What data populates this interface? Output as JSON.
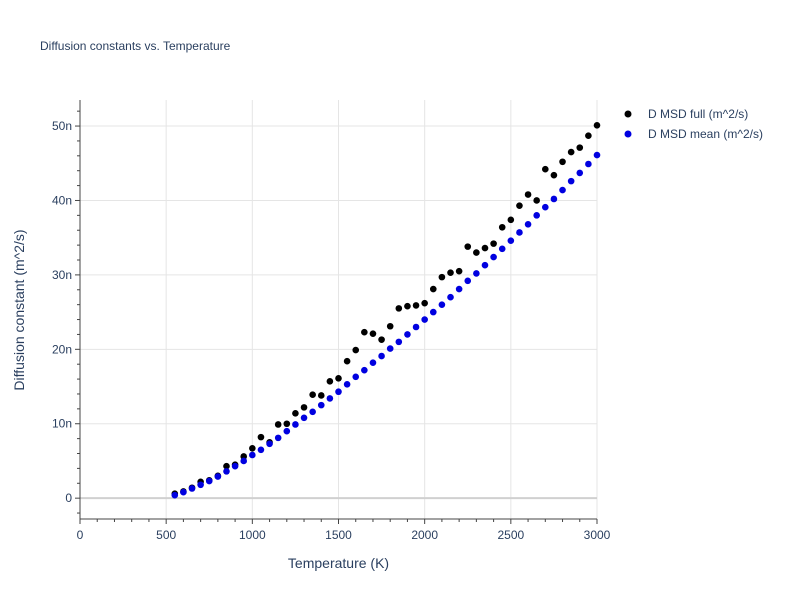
{
  "chart_data": {
    "type": "scatter",
    "title": "Diffusion constants vs. Temperature",
    "xlabel": "Temperature (K)",
    "ylabel": "Diffusion constant (m^2/s)",
    "xlim": [
      0,
      3000
    ],
    "ylim": [
      -2.8,
      53.5
    ],
    "x_ticks": [
      0,
      500,
      1000,
      1500,
      2000,
      2500,
      3000
    ],
    "x_tick_labels": [
      "0",
      "500",
      "1000",
      "1500",
      "2000",
      "2500",
      "3000"
    ],
    "y_ticks": [
      0,
      10,
      20,
      30,
      40,
      50
    ],
    "y_tick_labels": [
      "0",
      "10n",
      "20n",
      "30n",
      "40n",
      "50n"
    ],
    "y_unit_note": "values in units of 1e-9 m^2/s",
    "grid": true,
    "legend_position": "top-right outside",
    "series": [
      {
        "name": "D MSD full (m^2/s)",
        "color": "#000000",
        "x": [
          550,
          600,
          650,
          700,
          750,
          800,
          850,
          900,
          950,
          1000,
          1050,
          1100,
          1150,
          1200,
          1250,
          1300,
          1350,
          1400,
          1450,
          1500,
          1550,
          1600,
          1650,
          1700,
          1750,
          1800,
          1850,
          1900,
          1950,
          2000,
          2050,
          2100,
          2150,
          2200,
          2250,
          2300,
          2350,
          2400,
          2450,
          2500,
          2550,
          2600,
          2650,
          2700,
          2750,
          2800,
          2850,
          2900,
          2950,
          3000
        ],
        "y": [
          0.6,
          0.9,
          1.4,
          2.2,
          2.4,
          3.0,
          4.3,
          4.5,
          5.6,
          6.7,
          8.2,
          7.5,
          9.9,
          10.0,
          11.4,
          12.2,
          13.9,
          13.8,
          15.7,
          16.1,
          18.4,
          19.9,
          22.3,
          22.1,
          21.3,
          23.1,
          25.5,
          25.8,
          25.9,
          26.2,
          28.1,
          29.7,
          30.3,
          30.5,
          33.8,
          33.0,
          33.6,
          34.2,
          36.4,
          37.4,
          39.3,
          40.8,
          40.0,
          44.2,
          43.4,
          45.2,
          46.5,
          47.1,
          48.7,
          50.1
        ]
      },
      {
        "name": "D MSD mean (m^2/s)",
        "color": "#0000e0",
        "x": [
          550,
          600,
          650,
          700,
          750,
          800,
          850,
          900,
          950,
          1000,
          1050,
          1100,
          1150,
          1200,
          1250,
          1300,
          1350,
          1400,
          1450,
          1500,
          1550,
          1600,
          1650,
          1700,
          1750,
          1800,
          1850,
          1900,
          1950,
          2000,
          2050,
          2100,
          2150,
          2200,
          2250,
          2300,
          2350,
          2400,
          2450,
          2500,
          2550,
          2600,
          2650,
          2700,
          2750,
          2800,
          2850,
          2900,
          2950,
          3000
        ],
        "y": [
          0.4,
          0.8,
          1.3,
          1.8,
          2.3,
          2.9,
          3.6,
          4.3,
          5.0,
          5.8,
          6.5,
          7.3,
          8.1,
          9.0,
          9.9,
          10.8,
          11.6,
          12.5,
          13.4,
          14.3,
          15.3,
          16.3,
          17.2,
          18.2,
          19.1,
          20.1,
          21.0,
          22.0,
          23.0,
          24.0,
          25.0,
          26.0,
          27.0,
          28.1,
          29.2,
          30.2,
          31.3,
          32.4,
          33.5,
          34.6,
          35.7,
          36.8,
          38.0,
          39.1,
          40.2,
          41.4,
          42.6,
          43.7,
          44.9,
          46.1
        ]
      }
    ]
  }
}
